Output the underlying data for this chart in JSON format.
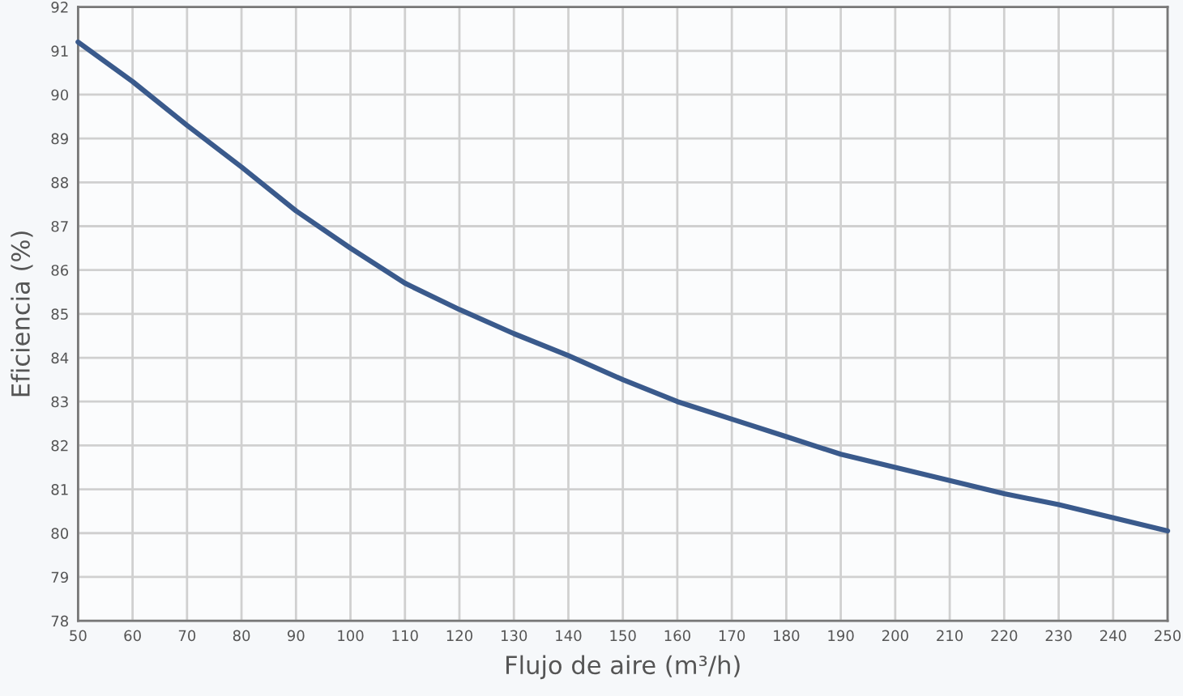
{
  "chart_data": {
    "type": "line",
    "xlabel": "Flujo de aire (m³/h)",
    "ylabel": "Eficiencia (%)",
    "x": [
      50,
      60,
      70,
      80,
      90,
      100,
      110,
      120,
      130,
      140,
      150,
      160,
      170,
      180,
      190,
      200,
      210,
      220,
      230,
      240,
      250
    ],
    "series": [
      {
        "color": "#3a5a8c",
        "values": [
          91.2,
          90.3,
          89.3,
          88.35,
          87.35,
          86.5,
          85.7,
          85.1,
          84.55,
          84.05,
          83.5,
          83.0,
          82.6,
          82.2,
          81.8,
          81.5,
          81.2,
          80.9,
          80.65,
          80.35,
          80.05
        ]
      }
    ],
    "xlim": [
      50,
      250
    ],
    "ylim": [
      78,
      92
    ],
    "xticks": [
      50,
      60,
      70,
      80,
      90,
      100,
      110,
      120,
      130,
      140,
      150,
      160,
      170,
      180,
      190,
      200,
      210,
      220,
      230,
      240,
      250
    ],
    "yticks": [
      78,
      79,
      80,
      81,
      82,
      83,
      84,
      85,
      86,
      87,
      88,
      89,
      90,
      91,
      92
    ],
    "grid": true,
    "marker": "none",
    "line_style": "solid"
  }
}
